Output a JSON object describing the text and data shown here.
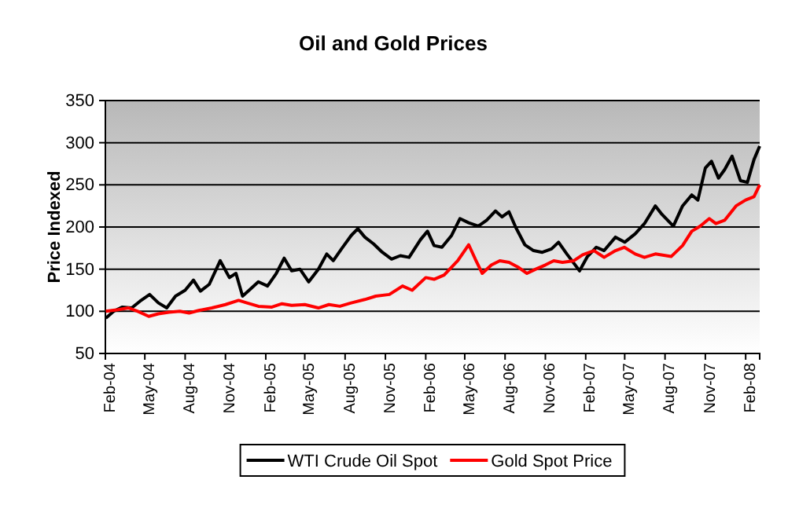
{
  "chart_data": {
    "type": "line",
    "title": "Oil and Gold Prices",
    "ylabel": "Price Indexed",
    "xlim": [
      "2004-02-01",
      "2008-03-04"
    ],
    "xticks": [
      {
        "value": "2004-02-01",
        "label": "Feb-04"
      },
      {
        "value": "2004-05-01",
        "label": "May-04"
      },
      {
        "value": "2004-08-01",
        "label": "Aug-04"
      },
      {
        "value": "2004-11-01",
        "label": "Nov-04"
      },
      {
        "value": "2005-02-01",
        "label": "Feb-05"
      },
      {
        "value": "2005-05-01",
        "label": "May-05"
      },
      {
        "value": "2005-08-01",
        "label": "Aug-05"
      },
      {
        "value": "2005-11-01",
        "label": "Nov-05"
      },
      {
        "value": "2006-02-01",
        "label": "Feb-06"
      },
      {
        "value": "2006-05-01",
        "label": "May-06"
      },
      {
        "value": "2006-08-01",
        "label": "Aug-06"
      },
      {
        "value": "2006-11-01",
        "label": "Nov-06"
      },
      {
        "value": "2007-02-01",
        "label": "Feb-07"
      },
      {
        "value": "2007-05-01",
        "label": "May-07"
      },
      {
        "value": "2007-08-01",
        "label": "Aug-07"
      },
      {
        "value": "2007-11-01",
        "label": "Nov-07"
      },
      {
        "value": "2008-02-01",
        "label": "Feb-08"
      }
    ],
    "ylim": [
      50,
      350
    ],
    "yticks": [
      50,
      100,
      150,
      200,
      250,
      300,
      350
    ],
    "grid": "y",
    "legend": "bottom",
    "marker": "none",
    "line_style": "solid",
    "series": [
      {
        "name": "WTI Crude Oil Spot",
        "color": "#000000",
        "x": [
          "2004-02-02",
          "2004-02-20",
          "2004-03-10",
          "2004-04-01",
          "2004-04-20",
          "2004-05-12",
          "2004-06-01",
          "2004-06-20",
          "2004-07-10",
          "2004-08-01",
          "2004-08-20",
          "2004-09-05",
          "2004-09-25",
          "2004-10-20",
          "2004-11-10",
          "2004-11-25",
          "2004-12-10",
          "2004-12-25",
          "2005-01-15",
          "2005-02-05",
          "2005-02-25",
          "2005-03-15",
          "2005-04-01",
          "2005-04-20",
          "2005-05-10",
          "2005-06-01",
          "2005-06-20",
          "2005-07-05",
          "2005-07-25",
          "2005-08-15",
          "2005-08-30",
          "2005-09-15",
          "2005-10-05",
          "2005-10-25",
          "2005-11-15",
          "2005-12-05",
          "2005-12-25",
          "2006-01-20",
          "2006-02-05",
          "2006-02-20",
          "2006-03-10",
          "2006-04-01",
          "2006-04-20",
          "2006-05-10",
          "2006-06-01",
          "2006-06-20",
          "2006-07-10",
          "2006-07-25",
          "2006-08-10",
          "2006-08-25",
          "2006-09-15",
          "2006-10-05",
          "2006-10-25",
          "2006-11-15",
          "2006-12-01",
          "2006-12-20",
          "2007-01-18",
          "2007-02-05",
          "2007-02-25",
          "2007-03-15",
          "2007-04-10",
          "2007-05-01",
          "2007-05-25",
          "2007-06-15",
          "2007-07-10",
          "2007-07-25",
          "2007-08-20",
          "2007-09-10",
          "2007-10-01",
          "2007-10-15",
          "2007-11-01",
          "2007-11-15",
          "2007-12-01",
          "2007-12-15",
          "2008-01-01",
          "2008-01-20",
          "2008-02-05",
          "2008-02-20",
          "2008-03-04"
        ],
        "values": [
          92,
          100,
          105,
          104,
          112,
          120,
          110,
          104,
          118,
          125,
          137,
          124,
          132,
          160,
          140,
          145,
          118,
          125,
          135,
          130,
          145,
          163,
          148,
          150,
          135,
          150,
          168,
          160,
          175,
          190,
          198,
          188,
          180,
          170,
          162,
          166,
          164,
          185,
          195,
          178,
          176,
          190,
          210,
          205,
          201,
          208,
          219,
          212,
          218,
          200,
          179,
          172,
          170,
          174,
          182,
          168,
          148,
          165,
          176,
          172,
          188,
          182,
          192,
          204,
          225,
          215,
          201,
          225,
          238,
          232,
          270,
          278,
          258,
          268,
          284,
          255,
          253,
          280,
          296
        ]
      },
      {
        "name": "Gold Spot Price",
        "color": "#ff0000",
        "x": [
          "2004-02-02",
          "2004-03-01",
          "2004-03-25",
          "2004-04-15",
          "2004-05-10",
          "2004-06-01",
          "2004-06-25",
          "2004-07-20",
          "2004-08-10",
          "2004-09-01",
          "2004-10-01",
          "2004-11-01",
          "2004-12-01",
          "2004-12-20",
          "2005-01-15",
          "2005-02-15",
          "2005-03-10",
          "2005-04-01",
          "2005-05-01",
          "2005-06-01",
          "2005-06-25",
          "2005-07-20",
          "2005-08-15",
          "2005-09-15",
          "2005-10-10",
          "2005-11-10",
          "2005-12-10",
          "2006-01-01",
          "2006-02-01",
          "2006-02-20",
          "2006-03-15",
          "2006-04-15",
          "2006-05-10",
          "2006-05-25",
          "2006-06-10",
          "2006-07-01",
          "2006-07-20",
          "2006-08-10",
          "2006-09-01",
          "2006-09-20",
          "2006-10-10",
          "2006-11-01",
          "2006-11-20",
          "2006-12-10",
          "2007-01-05",
          "2007-01-25",
          "2007-02-20",
          "2007-03-15",
          "2007-04-10",
          "2007-04-30",
          "2007-05-25",
          "2007-06-15",
          "2007-07-10",
          "2007-08-15",
          "2007-09-10",
          "2007-10-01",
          "2007-10-20",
          "2007-11-10",
          "2007-11-25",
          "2007-12-15",
          "2008-01-10",
          "2008-02-01",
          "2008-02-20",
          "2008-03-04"
        ],
        "values": [
          100,
          102,
          104,
          100,
          94,
          97,
          99,
          100,
          98,
          101,
          104,
          108,
          113,
          110,
          106,
          105,
          109,
          107,
          108,
          104,
          108,
          106,
          110,
          114,
          118,
          120,
          130,
          125,
          140,
          138,
          143,
          160,
          179,
          162,
          145,
          155,
          160,
          158,
          152,
          145,
          150,
          155,
          160,
          158,
          160,
          167,
          172,
          164,
          172,
          176,
          168,
          164,
          168,
          165,
          178,
          195,
          201,
          210,
          204,
          208,
          225,
          232,
          236,
          250
        ]
      }
    ]
  }
}
